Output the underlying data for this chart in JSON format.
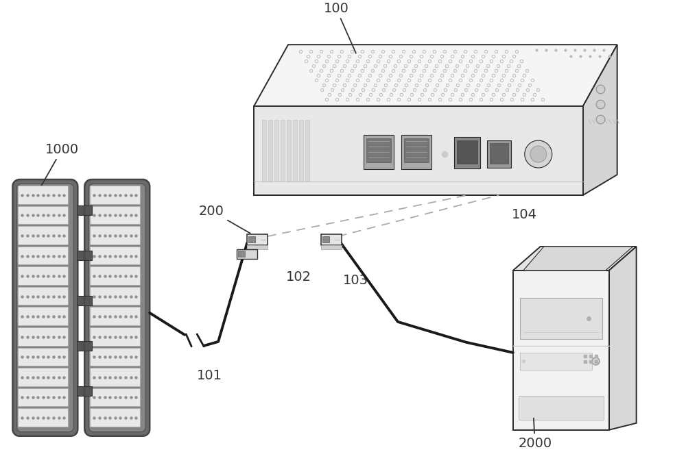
{
  "bg_color": "#ffffff",
  "label_100": "100",
  "label_1000": "1000",
  "label_2000": "2000",
  "label_200": "200",
  "label_101": "101",
  "label_102": "102",
  "label_103": "103",
  "label_104": "104",
  "line_color": "#2a2a2a",
  "cable_color": "#1a1a1a",
  "annotation_color": "#333333",
  "router_top_color": "#f5f5f5",
  "router_front_color": "#e8e8e8",
  "router_right_color": "#d5d5d5",
  "router_dot_color": "#c8c8c8",
  "rack_outer_color": "#6a6a6a",
  "rack_inner_color": "#858585",
  "rack_slot_color": "#e8e8e8",
  "rack_dot_color": "#909090",
  "pc_front_color": "#f2f2f2",
  "pc_top_color": "#e5e5e5",
  "pc_right_color": "#d8d8d8",
  "connector_color": "#e5e5e5",
  "connector_port_color": "#888888"
}
